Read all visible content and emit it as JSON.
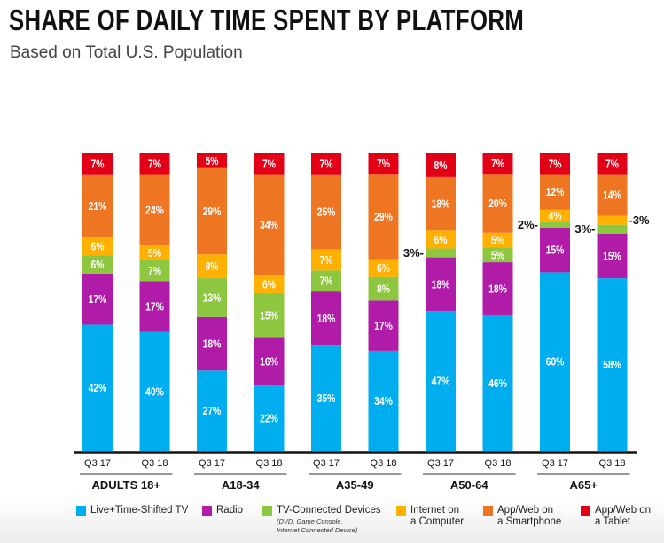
{
  "title": "SHARE OF DAILY TIME SPENT BY PLATFORM",
  "subtitle": "Based on Total U.S. Population",
  "chart_data": {
    "type": "bar",
    "stacked": true,
    "title": "SHARE OF DAILY TIME SPENT BY PLATFORM",
    "subtitle": "Based on Total U.S. Population",
    "value_format": "percent",
    "groups": [
      {
        "label": "ADULTS 18+",
        "categories": [
          "Q3 17",
          "Q3 18"
        ]
      },
      {
        "label": "A18-34",
        "categories": [
          "Q3 17",
          "Q3 18"
        ]
      },
      {
        "label": "A35-49",
        "categories": [
          "Q3 17",
          "Q3 18"
        ]
      },
      {
        "label": "A50-64",
        "categories": [
          "Q3 17",
          "Q3 18"
        ]
      },
      {
        "label": "A65+",
        "categories": [
          "Q3 17",
          "Q3 18"
        ]
      }
    ],
    "categories": [
      "Q3 17",
      "Q3 18",
      "Q3 17",
      "Q3 18",
      "Q3 17",
      "Q3 18",
      "Q3 17",
      "Q3 18",
      "Q3 17",
      "Q3 18"
    ],
    "series": [
      {
        "name": "Live+Time-Shifted TV",
        "color": "#00aeef",
        "values": [
          42,
          40,
          27,
          22,
          35,
          34,
          47,
          46,
          60,
          58
        ]
      },
      {
        "name": "Radio",
        "color": "#b01ba8",
        "values": [
          17,
          17,
          18,
          16,
          18,
          17,
          18,
          18,
          15,
          15
        ]
      },
      {
        "name": "TV-Connected Devices",
        "note": "(DVD, Game Console, Internet Connected Device)",
        "color": "#8dc63f",
        "values": [
          6,
          7,
          13,
          15,
          7,
          8,
          3,
          5,
          2,
          3
        ]
      },
      {
        "name": "Internet on a Computer",
        "color": "#ffb000",
        "values": [
          6,
          5,
          8,
          6,
          7,
          6,
          6,
          5,
          4,
          3
        ]
      },
      {
        "name": "App/Web on a Smartphone",
        "color": "#ee7622",
        "values": [
          21,
          24,
          29,
          34,
          25,
          29,
          18,
          20,
          12,
          14
        ]
      },
      {
        "name": "App/Web on a Tablet",
        "color": "#e30016",
        "values": [
          7,
          7,
          5,
          7,
          7,
          7,
          8,
          7,
          7,
          7
        ]
      }
    ],
    "legend_position": "bottom",
    "grid": false
  },
  "legend": [
    {
      "line1": "Live+Time-Shifted TV",
      "line2": ""
    },
    {
      "line1": "Radio",
      "line2": ""
    },
    {
      "line1": "TV-Connected Devices",
      "line2": "",
      "note1": "(DVD, Game Console,",
      "note2": "Internet Connected Device)"
    },
    {
      "line1": "Internet on",
      "line2": "a Computer"
    },
    {
      "line1": "App/Web on",
      "line2": "a Smartphone"
    },
    {
      "line1": "App/Web on",
      "line2": "a Tablet"
    }
  ]
}
